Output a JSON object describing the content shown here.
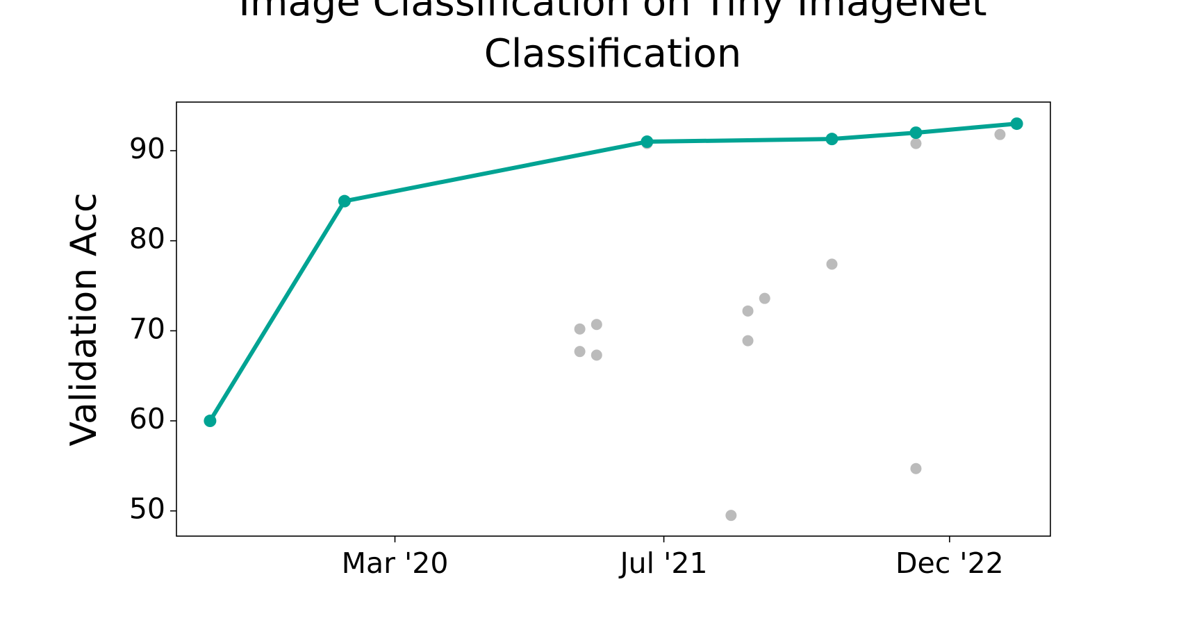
{
  "chart_data": {
    "type": "line",
    "title": "Image Classification on Tiny ImageNet Classification",
    "y_label": "Validation Acc",
    "xlim": [
      "2019-02",
      "2023-06"
    ],
    "xticks": [
      {
        "value": "2020-03",
        "label": "Mar '20"
      },
      {
        "value": "2021-07",
        "label": "Jul '21"
      },
      {
        "value": "2022-12",
        "label": "Dec '22"
      }
    ],
    "ylim": [
      47.2,
      95.4
    ],
    "yticks": [
      50,
      60,
      70,
      80,
      90
    ],
    "series": [
      {
        "color": "#00a393",
        "style": "line",
        "x": [
          "2019-04",
          "2019-12",
          "2021-06",
          "2022-05",
          "2022-10",
          "2023-04"
        ],
        "values": [
          60,
          84.4,
          91.0,
          91.3,
          92.0,
          93.0
        ]
      },
      {
        "color": "#bbbbbb",
        "style": "scatter",
        "x": [
          "2021-02",
          "2021-03",
          "2021-02",
          "2021-03",
          "2021-06",
          "2021-11",
          "2021-12",
          "2021-12",
          "2022-01",
          "2022-05",
          "2022-10",
          "2022-10",
          "2023-03"
        ],
        "values": [
          70.2,
          70.7,
          67.7,
          67.3,
          90.8,
          49.5,
          72.2,
          68.9,
          73.6,
          77.4,
          90.8,
          54.7,
          91.8
        ]
      }
    ]
  }
}
